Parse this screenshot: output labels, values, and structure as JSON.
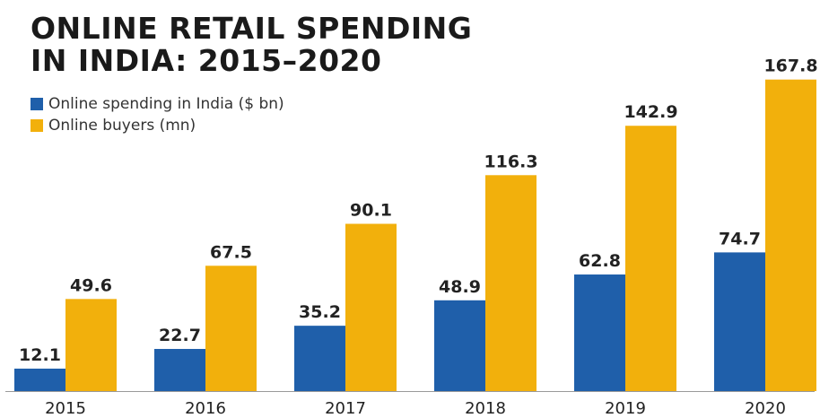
{
  "chart_data": {
    "type": "bar",
    "title_lines": [
      "ONLINE RETAIL SPENDING",
      "IN INDIA: 2015–2020"
    ],
    "categories": [
      "2015",
      "2016",
      "2017",
      "2018",
      "2019",
      "2020"
    ],
    "series": [
      {
        "name": "Online spending in India ($ bn)",
        "color": "#1f5faa",
        "values": [
          12.1,
          22.7,
          35.2,
          48.9,
          62.8,
          74.7
        ],
        "labels": [
          "12.1",
          "22.7",
          "35.2",
          "48.9",
          "62.8",
          "74.7"
        ]
      },
      {
        "name": "Online buyers (mn)",
        "color": "#f2b00c",
        "values": [
          49.6,
          67.5,
          90.1,
          116.3,
          142.9,
          167.8
        ],
        "labels": [
          "49.6",
          "67.5",
          "90.1",
          "116.3",
          "142.9",
          "167.8"
        ]
      }
    ],
    "xlabel": "",
    "ylabel": "",
    "ylim": [
      0,
      172
    ],
    "grid": false,
    "legend_position": "top-left"
  }
}
